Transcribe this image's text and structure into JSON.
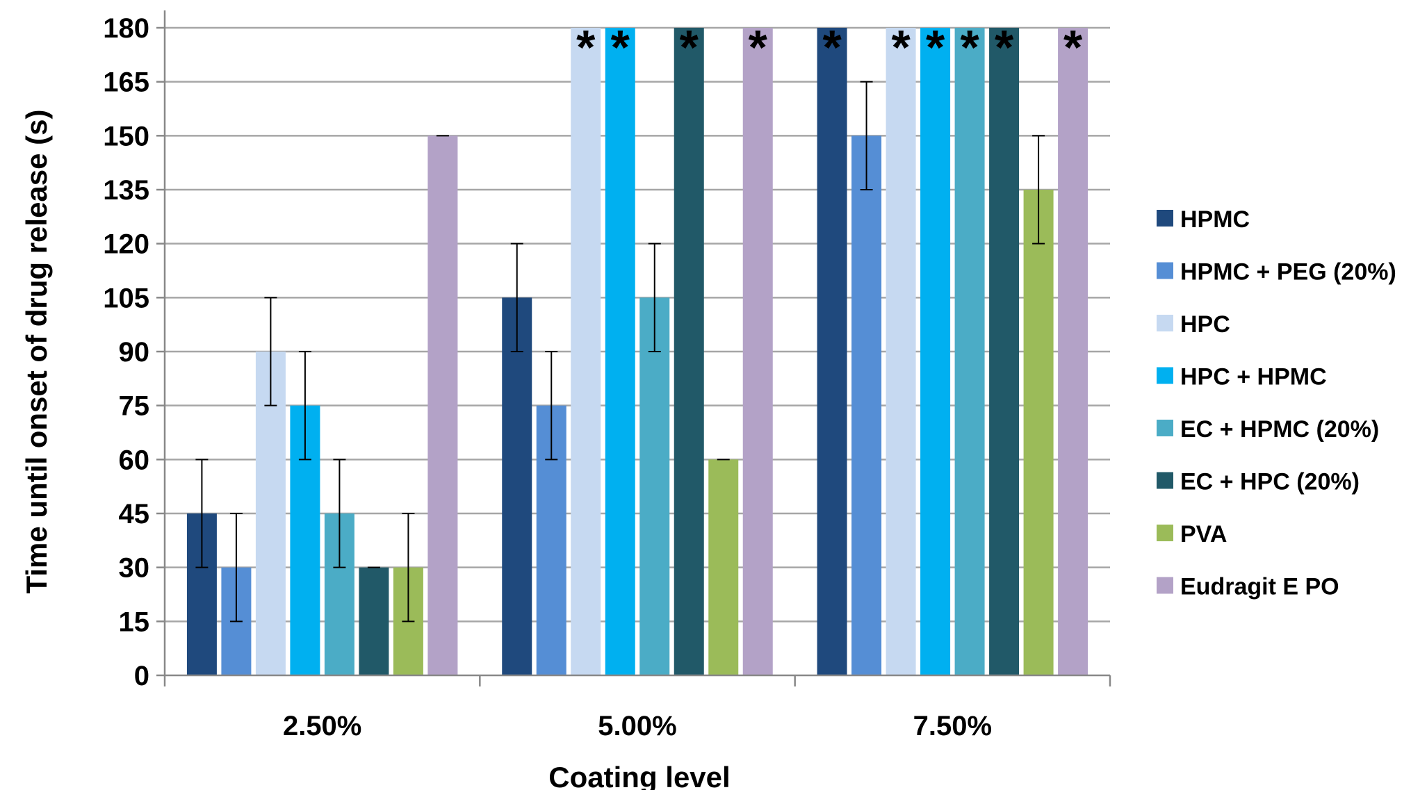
{
  "chart_data": {
    "type": "bar",
    "title": "",
    "xlabel": "Coating level",
    "ylabel": "Time until onset of drug release (s)",
    "ylim": [
      0,
      180
    ],
    "yticks": [
      0,
      15,
      30,
      45,
      60,
      75,
      90,
      105,
      120,
      135,
      150,
      165,
      180
    ],
    "grid": true,
    "legend_position": "right",
    "categories": [
      "2.50%",
      "5.00%",
      "7.50%"
    ],
    "series": [
      {
        "name": "HPMC",
        "color": "#1F497D",
        "values": [
          45,
          105,
          180
        ],
        "errors": [
          15,
          15,
          0
        ],
        "asterisk": [
          false,
          false,
          true
        ]
      },
      {
        "name": "HPMC + PEG (20%)",
        "color": "#558ED5",
        "values": [
          30,
          75,
          150
        ],
        "errors": [
          15,
          15,
          15
        ],
        "asterisk": [
          false,
          false,
          false
        ]
      },
      {
        "name": "HPC",
        "color": "#C6D9F1",
        "values": [
          90,
          180,
          180
        ],
        "errors": [
          15,
          0,
          0
        ],
        "asterisk": [
          false,
          true,
          true
        ]
      },
      {
        "name": "HPC + HPMC",
        "color": "#00B0F0",
        "values": [
          75,
          180,
          180
        ],
        "errors": [
          15,
          0,
          0
        ],
        "asterisk": [
          false,
          true,
          true
        ]
      },
      {
        "name": "EC + HPMC (20%)",
        "color": "#4BACC6",
        "values": [
          45,
          105,
          180
        ],
        "errors": [
          15,
          15,
          0
        ],
        "asterisk": [
          false,
          false,
          true
        ]
      },
      {
        "name": "EC + HPC (20%)",
        "color": "#215968",
        "values": [
          30,
          180,
          180
        ],
        "errors": [
          0,
          0,
          0
        ],
        "asterisk": [
          false,
          true,
          true
        ]
      },
      {
        "name": "PVA",
        "color": "#9BBB59",
        "values": [
          30,
          60,
          135
        ],
        "errors": [
          15,
          0,
          15
        ],
        "asterisk": [
          false,
          false,
          false
        ]
      },
      {
        "name": "Eudragit E PO",
        "color": "#B3A2C7",
        "values": [
          150,
          180,
          180
        ],
        "errors": [
          0,
          0,
          0
        ],
        "asterisk": [
          false,
          true,
          true
        ]
      }
    ],
    "asterisk_symbol": "*"
  }
}
